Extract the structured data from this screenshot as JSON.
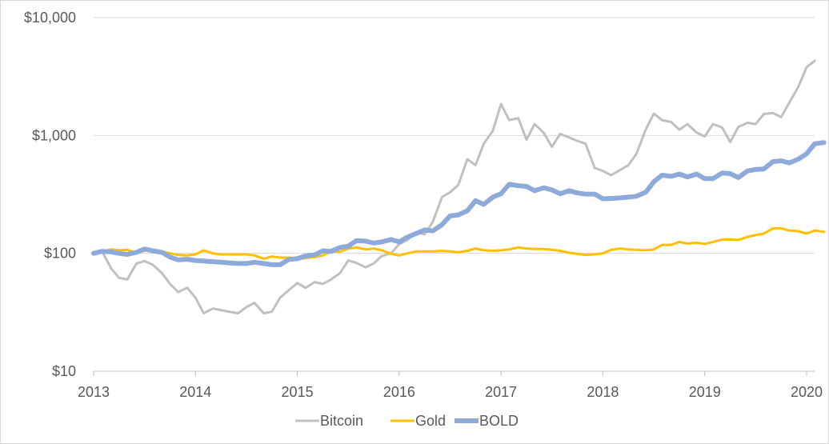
{
  "chart_data": {
    "type": "line",
    "title": "",
    "xlabel": "",
    "ylabel": "",
    "yscale": "log",
    "ylim": [
      10,
      10000
    ],
    "xlim": [
      2013.0,
      2020.25
    ],
    "y_ticks": [
      {
        "value": 10,
        "label": "$10"
      },
      {
        "value": 100,
        "label": "$100"
      },
      {
        "value": 1000,
        "label": "$1,000"
      },
      {
        "value": 10000,
        "label": "$10,000"
      }
    ],
    "x_ticks": [
      {
        "value": 2013,
        "label": "2013"
      },
      {
        "value": 2014,
        "label": "2014"
      },
      {
        "value": 2015,
        "label": "2015"
      },
      {
        "value": 2016,
        "label": "2016"
      },
      {
        "value": 2017,
        "label": "2017"
      },
      {
        "value": 2018,
        "label": "2018"
      },
      {
        "value": 2019,
        "label": "2019"
      },
      {
        "value": 2020,
        "label": "2020"
      }
    ],
    "legend_position": "bottom",
    "series": [
      {
        "name": "Bitcoin",
        "color": "#c0c0c0",
        "points": [
          [
            2013.0,
            100
          ],
          [
            2013.08,
            105
          ],
          [
            2013.17,
            75
          ],
          [
            2013.25,
            62
          ],
          [
            2013.33,
            60
          ],
          [
            2013.42,
            82
          ],
          [
            2013.5,
            86
          ],
          [
            2013.58,
            80
          ],
          [
            2013.67,
            68
          ],
          [
            2013.75,
            55
          ],
          [
            2013.83,
            47
          ],
          [
            2013.92,
            51
          ],
          [
            2014.0,
            42
          ],
          [
            2014.08,
            31
          ],
          [
            2014.17,
            34
          ],
          [
            2014.25,
            33
          ],
          [
            2014.33,
            32
          ],
          [
            2014.42,
            31
          ],
          [
            2014.5,
            35
          ],
          [
            2014.58,
            38
          ],
          [
            2014.67,
            31
          ],
          [
            2014.75,
            32
          ],
          [
            2014.83,
            42
          ],
          [
            2014.92,
            49
          ],
          [
            2015.0,
            56
          ],
          [
            2015.08,
            51
          ],
          [
            2015.17,
            57
          ],
          [
            2015.25,
            55
          ],
          [
            2015.33,
            60
          ],
          [
            2015.42,
            68
          ],
          [
            2015.5,
            87
          ],
          [
            2015.58,
            83
          ],
          [
            2015.67,
            76
          ],
          [
            2015.75,
            82
          ],
          [
            2015.83,
            95
          ],
          [
            2015.92,
            100
          ],
          [
            2016.0,
            120
          ],
          [
            2016.08,
            130
          ],
          [
            2016.17,
            150
          ],
          [
            2016.25,
            145
          ],
          [
            2016.33,
            185
          ],
          [
            2016.42,
            300
          ],
          [
            2016.5,
            330
          ],
          [
            2016.58,
            380
          ],
          [
            2016.67,
            630
          ],
          [
            2016.75,
            560
          ],
          [
            2016.83,
            850
          ],
          [
            2016.92,
            1100
          ],
          [
            2017.0,
            1850
          ],
          [
            2017.08,
            1350
          ],
          [
            2017.17,
            1400
          ],
          [
            2017.25,
            920
          ],
          [
            2017.33,
            1250
          ],
          [
            2017.42,
            1050
          ],
          [
            2017.5,
            800
          ],
          [
            2017.58,
            1030
          ],
          [
            2017.67,
            960
          ],
          [
            2017.75,
            900
          ],
          [
            2017.83,
            850
          ],
          [
            2017.92,
            530
          ],
          [
            2018.0,
            500
          ],
          [
            2018.08,
            460
          ],
          [
            2018.17,
            510
          ],
          [
            2018.25,
            560
          ],
          [
            2018.33,
            700
          ],
          [
            2018.42,
            1120
          ],
          [
            2018.5,
            1530
          ],
          [
            2018.58,
            1350
          ],
          [
            2018.67,
            1300
          ],
          [
            2018.75,
            1120
          ],
          [
            2018.83,
            1250
          ],
          [
            2018.92,
            1060
          ],
          [
            2019.0,
            980
          ],
          [
            2019.08,
            1250
          ],
          [
            2019.17,
            1170
          ],
          [
            2019.25,
            880
          ],
          [
            2019.33,
            1180
          ],
          [
            2019.42,
            1280
          ],
          [
            2019.5,
            1250
          ],
          [
            2019.58,
            1520
          ],
          [
            2019.67,
            1550
          ],
          [
            2019.75,
            1430
          ],
          [
            2019.83,
            1900
          ],
          [
            2019.92,
            2600
          ],
          [
            2020.0,
            3800
          ],
          [
            2020.08,
            4300
          ]
        ]
      },
      {
        "name": "Gold",
        "color": "#ffc000",
        "points": [
          [
            2013.0,
            100
          ],
          [
            2013.08,
            103
          ],
          [
            2013.17,
            108
          ],
          [
            2013.25,
            106
          ],
          [
            2013.33,
            107
          ],
          [
            2013.42,
            101
          ],
          [
            2013.5,
            105
          ],
          [
            2013.58,
            106
          ],
          [
            2013.67,
            104
          ],
          [
            2013.75,
            100
          ],
          [
            2013.83,
            97
          ],
          [
            2013.92,
            96
          ],
          [
            2014.0,
            98
          ],
          [
            2014.08,
            106
          ],
          [
            2014.17,
            100
          ],
          [
            2014.25,
            98
          ],
          [
            2014.33,
            98
          ],
          [
            2014.42,
            98
          ],
          [
            2014.5,
            98
          ],
          [
            2014.58,
            96
          ],
          [
            2014.67,
            90
          ],
          [
            2014.75,
            94
          ],
          [
            2014.83,
            92
          ],
          [
            2014.92,
            92
          ],
          [
            2015.0,
            90
          ],
          [
            2015.08,
            91
          ],
          [
            2015.17,
            93
          ],
          [
            2015.25,
            96
          ],
          [
            2015.33,
            104
          ],
          [
            2015.42,
            103
          ],
          [
            2015.5,
            110
          ],
          [
            2015.58,
            112
          ],
          [
            2015.67,
            108
          ],
          [
            2015.75,
            110
          ],
          [
            2015.83,
            106
          ],
          [
            2015.92,
            99
          ],
          [
            2016.0,
            96
          ],
          [
            2016.08,
            100
          ],
          [
            2016.17,
            104
          ],
          [
            2016.25,
            104
          ],
          [
            2016.33,
            104
          ],
          [
            2016.42,
            105
          ],
          [
            2016.5,
            104
          ],
          [
            2016.58,
            102
          ],
          [
            2016.67,
            105
          ],
          [
            2016.75,
            110
          ],
          [
            2016.83,
            106
          ],
          [
            2016.92,
            105
          ],
          [
            2017.0,
            106
          ],
          [
            2017.08,
            108
          ],
          [
            2017.17,
            112
          ],
          [
            2017.25,
            110
          ],
          [
            2017.33,
            109
          ],
          [
            2017.42,
            109
          ],
          [
            2017.5,
            107
          ],
          [
            2017.58,
            105
          ],
          [
            2017.67,
            101
          ],
          [
            2017.75,
            99
          ],
          [
            2017.83,
            97
          ],
          [
            2017.92,
            98
          ],
          [
            2018.0,
            100
          ],
          [
            2018.08,
            107
          ],
          [
            2018.17,
            110
          ],
          [
            2018.25,
            108
          ],
          [
            2018.33,
            107
          ],
          [
            2018.42,
            106
          ],
          [
            2018.5,
            108
          ],
          [
            2018.58,
            118
          ],
          [
            2018.67,
            118
          ],
          [
            2018.75,
            125
          ],
          [
            2018.83,
            121
          ],
          [
            2018.92,
            123
          ],
          [
            2019.0,
            120
          ],
          [
            2019.08,
            125
          ],
          [
            2019.17,
            131
          ],
          [
            2019.25,
            131
          ],
          [
            2019.33,
            130
          ],
          [
            2019.42,
            138
          ],
          [
            2019.5,
            143
          ],
          [
            2019.58,
            147
          ],
          [
            2019.67,
            163
          ],
          [
            2019.75,
            163
          ],
          [
            2019.83,
            156
          ],
          [
            2019.92,
            154
          ],
          [
            2020.0,
            147
          ],
          [
            2020.08,
            156
          ],
          [
            2020.17,
            152
          ]
        ]
      },
      {
        "name": "BOLD",
        "color": "#8eaadb",
        "points": [
          [
            2013.0,
            100
          ],
          [
            2013.08,
            104
          ],
          [
            2013.17,
            103
          ],
          [
            2013.25,
            100
          ],
          [
            2013.33,
            98
          ],
          [
            2013.42,
            102
          ],
          [
            2013.5,
            109
          ],
          [
            2013.58,
            105
          ],
          [
            2013.67,
            102
          ],
          [
            2013.75,
            93
          ],
          [
            2013.83,
            88
          ],
          [
            2013.92,
            89
          ],
          [
            2014.0,
            87
          ],
          [
            2014.08,
            86
          ],
          [
            2014.17,
            85
          ],
          [
            2014.25,
            84
          ],
          [
            2014.33,
            83
          ],
          [
            2014.42,
            82
          ],
          [
            2014.5,
            82
          ],
          [
            2014.58,
            84
          ],
          [
            2014.67,
            82
          ],
          [
            2014.75,
            80
          ],
          [
            2014.83,
            80
          ],
          [
            2014.92,
            89
          ],
          [
            2015.0,
            90
          ],
          [
            2015.08,
            95
          ],
          [
            2015.17,
            97
          ],
          [
            2015.25,
            105
          ],
          [
            2015.33,
            104
          ],
          [
            2015.42,
            112
          ],
          [
            2015.5,
            115
          ],
          [
            2015.58,
            128
          ],
          [
            2015.67,
            127
          ],
          [
            2015.75,
            122
          ],
          [
            2015.83,
            125
          ],
          [
            2015.92,
            131
          ],
          [
            2016.0,
            125
          ],
          [
            2016.08,
            137
          ],
          [
            2016.17,
            148
          ],
          [
            2016.25,
            158
          ],
          [
            2016.33,
            155
          ],
          [
            2016.42,
            175
          ],
          [
            2016.5,
            208
          ],
          [
            2016.58,
            212
          ],
          [
            2016.67,
            230
          ],
          [
            2016.75,
            280
          ],
          [
            2016.83,
            260
          ],
          [
            2016.92,
            300
          ],
          [
            2017.0,
            320
          ],
          [
            2017.08,
            385
          ],
          [
            2017.17,
            375
          ],
          [
            2017.25,
            370
          ],
          [
            2017.33,
            340
          ],
          [
            2017.42,
            360
          ],
          [
            2017.5,
            345
          ],
          [
            2017.58,
            320
          ],
          [
            2017.67,
            340
          ],
          [
            2017.75,
            325
          ],
          [
            2017.83,
            318
          ],
          [
            2017.92,
            318
          ],
          [
            2018.0,
            290
          ],
          [
            2018.08,
            292
          ],
          [
            2018.17,
            295
          ],
          [
            2018.25,
            300
          ],
          [
            2018.33,
            305
          ],
          [
            2018.42,
            330
          ],
          [
            2018.5,
            405
          ],
          [
            2018.58,
            460
          ],
          [
            2018.67,
            450
          ],
          [
            2018.75,
            470
          ],
          [
            2018.83,
            445
          ],
          [
            2018.92,
            470
          ],
          [
            2019.0,
            430
          ],
          [
            2019.08,
            430
          ],
          [
            2019.17,
            480
          ],
          [
            2019.25,
            475
          ],
          [
            2019.33,
            440
          ],
          [
            2019.42,
            500
          ],
          [
            2019.5,
            515
          ],
          [
            2019.58,
            520
          ],
          [
            2019.67,
            600
          ],
          [
            2019.75,
            610
          ],
          [
            2019.83,
            585
          ],
          [
            2019.92,
            630
          ],
          [
            2020.0,
            700
          ],
          [
            2020.08,
            850
          ],
          [
            2020.17,
            870
          ]
        ]
      }
    ]
  }
}
